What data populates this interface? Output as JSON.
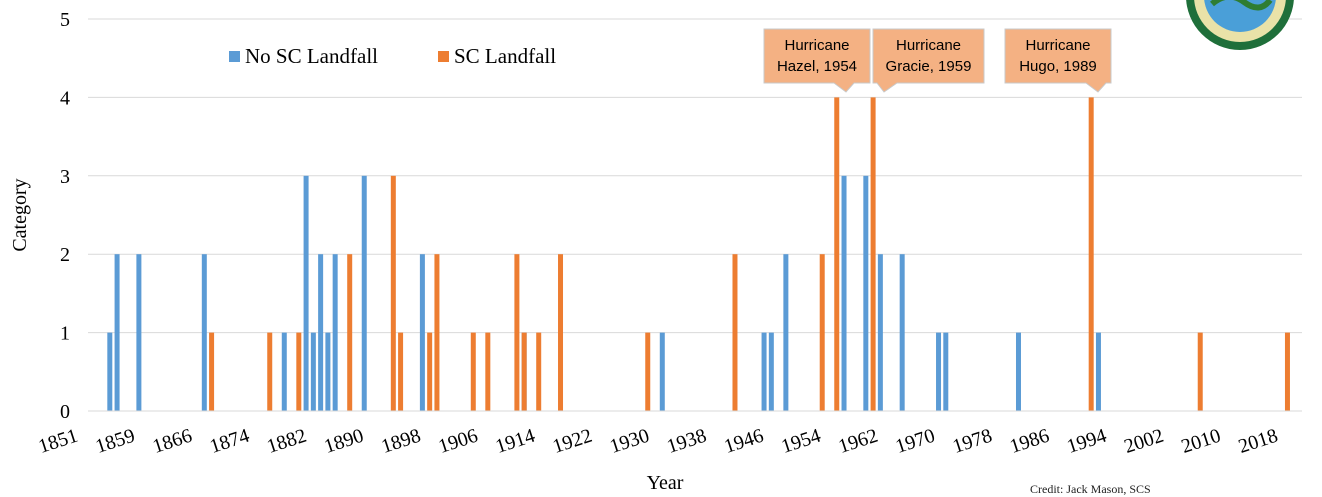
{
  "chart_data": {
    "type": "bar",
    "xlabel": "Year",
    "ylabel": "Category",
    "xlim": [
      1851,
      2018
    ],
    "ylim": [
      0,
      5
    ],
    "y_ticks": [
      "0",
      "1",
      "2",
      "3",
      "4",
      "5"
    ],
    "x_ticks": [
      "1851",
      "1859",
      "1866",
      "1874",
      "1882",
      "1890",
      "1898",
      "1906",
      "1914",
      "1922",
      "1930",
      "1938",
      "1946",
      "1954",
      "1962",
      "1970",
      "1978",
      "1986",
      "1994",
      "2002",
      "2010",
      "2018"
    ],
    "grid": true,
    "legend_position": "top-left",
    "series": [
      {
        "name": "No SC Landfall",
        "color": "#5B9BD5",
        "points": [
          {
            "x": 1854,
            "y": 1
          },
          {
            "x": 1855,
            "y": 2
          },
          {
            "x": 1858,
            "y": 2
          },
          {
            "x": 1867,
            "y": 2
          },
          {
            "x": 1878,
            "y": 1
          },
          {
            "x": 1881,
            "y": 3
          },
          {
            "x": 1882,
            "y": 1
          },
          {
            "x": 1883,
            "y": 2
          },
          {
            "x": 1884,
            "y": 1
          },
          {
            "x": 1885,
            "y": 2
          },
          {
            "x": 1889,
            "y": 3
          },
          {
            "x": 1897,
            "y": 2
          },
          {
            "x": 1911,
            "y": 1
          },
          {
            "x": 1930,
            "y": 1
          },
          {
            "x": 1944,
            "y": 1
          },
          {
            "x": 1945,
            "y": 1
          },
          {
            "x": 1947,
            "y": 2
          },
          {
            "x": 1955,
            "y": 3
          },
          {
            "x": 1958,
            "y": 3
          },
          {
            "x": 1960,
            "y": 2
          },
          {
            "x": 1963,
            "y": 2
          },
          {
            "x": 1968,
            "y": 1
          },
          {
            "x": 1969,
            "y": 1
          },
          {
            "x": 1979,
            "y": 1
          },
          {
            "x": 1990,
            "y": 1
          }
        ]
      },
      {
        "name": "SC Landfall",
        "color": "#ED7D31",
        "points": [
          {
            "x": 1868,
            "y": 1
          },
          {
            "x": 1876,
            "y": 1
          },
          {
            "x": 1880,
            "y": 1
          },
          {
            "x": 1887,
            "y": 2
          },
          {
            "x": 1893,
            "y": 3
          },
          {
            "x": 1894,
            "y": 1
          },
          {
            "x": 1898,
            "y": 1
          },
          {
            "x": 1899,
            "y": 2
          },
          {
            "x": 1904,
            "y": 1
          },
          {
            "x": 1906,
            "y": 1
          },
          {
            "x": 1910,
            "y": 2
          },
          {
            "x": 1911,
            "y": 1
          },
          {
            "x": 1913,
            "y": 1
          },
          {
            "x": 1916,
            "y": 2
          },
          {
            "x": 1928,
            "y": 1
          },
          {
            "x": 1940,
            "y": 2
          },
          {
            "x": 1952,
            "y": 2
          },
          {
            "x": 1954,
            "y": 4
          },
          {
            "x": 1959,
            "y": 4
          },
          {
            "x": 1989,
            "y": 4
          },
          {
            "x": 2004,
            "y": 1
          },
          {
            "x": 2016,
            "y": 1
          }
        ]
      }
    ],
    "annotations": [
      {
        "line1": "Hurricane",
        "line2": "Hazel, 1954",
        "x": 1954,
        "y": 4
      },
      {
        "line1": "Hurricane",
        "line2": "Gracie, 1959",
        "x": 1959,
        "y": 4
      },
      {
        "line1": "Hurricane",
        "line2": "Hugo, 1989",
        "x": 1989,
        "y": 4
      }
    ]
  },
  "credit_text": "Credit: Jack Mason, SCS"
}
